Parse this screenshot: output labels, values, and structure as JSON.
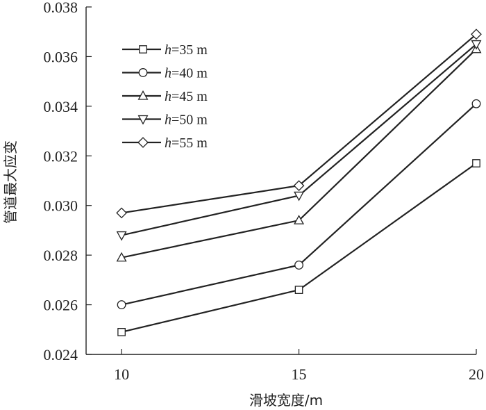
{
  "chart_data": {
    "type": "line",
    "xlabel": "滑坡宽度/m",
    "ylabel": "管道最大应变",
    "x": [
      10,
      15,
      20
    ],
    "xlim": [
      9,
      20
    ],
    "ylim": [
      0.024,
      0.038
    ],
    "xticks": [
      "10",
      "15",
      "20"
    ],
    "yticks": [
      "0.024",
      "0.026",
      "0.028",
      "0.030",
      "0.032",
      "0.034",
      "0.036",
      "0.038"
    ],
    "legend_position": "top-left",
    "grid": false,
    "series": [
      {
        "prefix": "h",
        "name": "=35 m",
        "marker": "square",
        "values": [
          0.0249,
          0.0266,
          0.0317
        ]
      },
      {
        "prefix": "h",
        "name": "=40 m",
        "marker": "circle",
        "values": [
          0.026,
          0.0276,
          0.0341
        ]
      },
      {
        "prefix": "h",
        "name": "=45 m",
        "marker": "triangle-up",
        "values": [
          0.0279,
          0.0294,
          0.0363
        ]
      },
      {
        "prefix": "h",
        "name": "=50 m",
        "marker": "triangle-down",
        "values": [
          0.0288,
          0.0304,
          0.0365
        ]
      },
      {
        "prefix": "h",
        "name": "=55 m",
        "marker": "diamond",
        "values": [
          0.0297,
          0.0308,
          0.0369
        ]
      }
    ]
  }
}
